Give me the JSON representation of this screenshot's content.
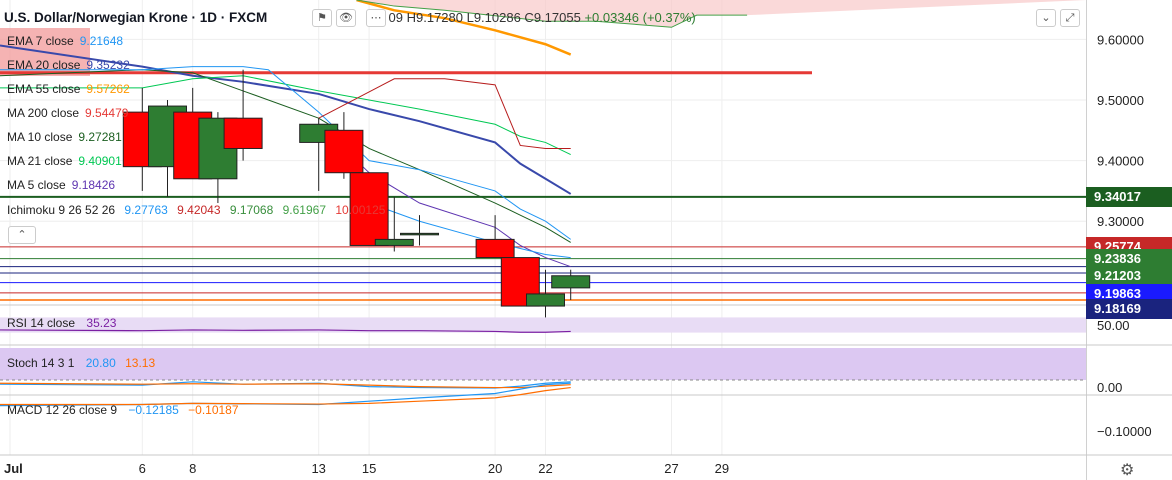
{
  "header": {
    "title": "U.S. Dollar/Norwegian Krone · 1D · FXCM",
    "ohlc_text": "09 H9.17280 L9.10286 C9.17055",
    "change_text": "+0.03346 (+0.37%)"
  },
  "legend": [
    {
      "label": "EMA 7 close",
      "value": "9.21648",
      "color": "#2196f3"
    },
    {
      "label": "EMA 20 close",
      "value": "9.35232",
      "color": "#3949ab"
    },
    {
      "label": "EMA 55 close",
      "value": "9.57262",
      "color": "#ff9800"
    },
    {
      "label": "MA 200 close",
      "value": "9.54479",
      "color": "#e53935"
    },
    {
      "label": "MA 10 close",
      "value": "9.27281",
      "color": "#1b5e20"
    },
    {
      "label": "MA 21 close",
      "value": "9.40901",
      "color": "#00c853"
    },
    {
      "label": "MA 5 close",
      "value": "9.18426",
      "color": "#5e35b1"
    }
  ],
  "ichimoku": {
    "label": "Ichimoku 9 26 52 26",
    "values": [
      "9.27763",
      "9.42043",
      "9.17068",
      "9.61967",
      "10.00125"
    ],
    "colors": [
      "#2196f3",
      "#c62828",
      "#388e3c",
      "#43a047",
      "#e53935"
    ]
  },
  "price_tags": [
    {
      "value": "9.34017",
      "color": "#1b5e20",
      "y": 9.34017
    },
    {
      "value": "9.25774",
      "color": "#c62828",
      "y": 9.25774
    },
    {
      "value": "9.23836",
      "color": "#2e7d32",
      "y": 9.23836
    },
    {
      "value": "9.21203",
      "color": "#2e7d32",
      "y": 9.21203
    },
    {
      "value": "9.19863",
      "color": "#1a1aff",
      "y": 9.19863
    },
    {
      "value": "9.18169",
      "color": "#1a237e",
      "y": 9.18169
    }
  ],
  "rsi": {
    "label": "RSI 14 close",
    "value": "35.23",
    "axis_tick": "50.00"
  },
  "stoch": {
    "label": "Stoch 14 3 1",
    "k": "20.80",
    "d": "13.13",
    "axis_tick": "0.00"
  },
  "macd": {
    "label": "MACD 12 26 close 9",
    "macd": "−0.12185",
    "signal": "−0.10187",
    "axis_tick": "−0.10000"
  },
  "chart_data": {
    "type": "candlestick",
    "title": "U.S. Dollar/Norwegian Krone · 1D · FXCM",
    "x_tick_labels": [
      "Jul",
      "6",
      "8",
      "13",
      "15",
      "20",
      "22",
      "27",
      "29"
    ],
    "y_tick_labels": [
      "9.60000",
      "9.50000",
      "9.40000",
      "9.30000"
    ],
    "ylim": [
      9.17,
      9.665
    ],
    "days": [
      6,
      7,
      8,
      9,
      10,
      13,
      14,
      15,
      16,
      17,
      20,
      21,
      22,
      23
    ],
    "candles": [
      {
        "o": 9.48,
        "h": 9.52,
        "l": 9.35,
        "c": 9.39
      },
      {
        "o": 9.39,
        "h": 9.5,
        "l": 9.34,
        "c": 9.49
      },
      {
        "o": 9.48,
        "h": 9.52,
        "l": 9.37,
        "c": 9.37
      },
      {
        "o": 9.37,
        "h": 9.48,
        "l": 9.33,
        "c": 9.47
      },
      {
        "o": 9.47,
        "h": 9.55,
        "l": 9.4,
        "c": 9.42
      },
      {
        "o": 9.43,
        "h": 9.47,
        "l": 9.35,
        "c": 9.46
      },
      {
        "o": 9.45,
        "h": 9.48,
        "l": 9.37,
        "c": 9.38
      },
      {
        "o": 9.38,
        "h": 9.38,
        "l": 9.26,
        "c": 9.26
      },
      {
        "o": 9.26,
        "h": 9.34,
        "l": 9.25,
        "c": 9.27
      },
      {
        "o": 9.28,
        "h": 9.31,
        "l": 9.26,
        "c": 9.28
      },
      {
        "o": 9.27,
        "h": 9.31,
        "l": 9.24,
        "c": 9.24
      },
      {
        "o": 9.24,
        "h": 9.24,
        "l": 9.16,
        "c": 9.16
      },
      {
        "o": 9.16,
        "h": 9.22,
        "l": 9.14,
        "c": 9.18
      },
      {
        "o": 9.19,
        "h": 9.22,
        "l": 9.17,
        "c": 9.21
      }
    ],
    "horizontal_levels": [
      {
        "y": 9.545,
        "color": "#e53935",
        "width": 3,
        "right": 812
      },
      {
        "y": 9.34017,
        "color": "#1b5e20",
        "width": 2
      },
      {
        "y": 9.25774,
        "color": "#c62828",
        "width": 1
      },
      {
        "y": 9.23836,
        "color": "#2e7d32",
        "width": 1
      },
      {
        "y": 9.225,
        "color": "#1a237e",
        "width": 1
      },
      {
        "y": 9.2145,
        "color": "#1a237e",
        "width": 1
      },
      {
        "y": 9.19863,
        "color": "#1a1aff",
        "width": 1
      },
      {
        "y": 9.18169,
        "color": "#c62828",
        "width": 1
      },
      {
        "y": 9.17,
        "color": "#ff6d00",
        "width": 1.5
      }
    ],
    "ma_lines": [
      {
        "name": "EMA 20 close",
        "color": "#3949ab",
        "width": 2,
        "x": [
          0,
          6,
          8,
          10,
          13,
          15,
          17,
          20,
          21,
          22,
          23
        ],
        "y": [
          9.59,
          9.555,
          9.54,
          9.53,
          9.51,
          9.485,
          9.465,
          9.43,
          9.395,
          9.37,
          9.345
        ]
      },
      {
        "name": "EMA 55 close",
        "color": "#ff9800",
        "width": 2.5,
        "x": [
          14.5,
          16,
          18,
          20,
          22,
          23
        ],
        "y": [
          9.665,
          9.648,
          9.635,
          9.615,
          9.592,
          9.575
        ]
      },
      {
        "name": "MA 10 close",
        "color": "#1b5e20",
        "width": 1,
        "x": [
          0,
          6,
          8,
          10,
          13,
          15,
          17,
          20,
          21,
          22,
          23
        ],
        "y": [
          9.54,
          9.55,
          9.545,
          9.515,
          9.47,
          9.42,
          9.385,
          9.33,
          9.31,
          9.29,
          9.265
        ]
      },
      {
        "name": "MA 21 close",
        "color": "#00c853",
        "width": 1,
        "x": [
          0,
          6,
          8,
          10,
          13,
          15,
          17,
          20,
          21,
          22,
          23
        ],
        "y": [
          9.52,
          9.52,
          9.535,
          9.54,
          9.515,
          9.5,
          9.485,
          9.46,
          9.44,
          9.43,
          9.41
        ]
      },
      {
        "name": "EMA 7 close",
        "color": "#2196f3",
        "width": 1,
        "x": [
          0,
          6,
          8,
          10,
          11,
          13,
          14,
          15,
          17,
          20,
          21,
          22,
          23
        ],
        "y": [
          9.55,
          9.55,
          9.555,
          9.555,
          9.55,
          9.48,
          9.44,
          9.4,
          9.385,
          9.35,
          9.32,
          9.3,
          9.27
        ]
      },
      {
        "name": "MA 5 close",
        "color": "#5e35b1",
        "width": 1,
        "x": [
          13,
          15,
          17,
          20,
          21,
          22,
          23
        ],
        "y": [
          9.46,
          9.38,
          9.33,
          9.29,
          9.26,
          9.24,
          9.225
        ]
      },
      {
        "name": "Ichimoku lagging",
        "color": "#2196f3",
        "width": 1,
        "x": [
          15,
          17,
          20,
          21,
          22,
          23
        ],
        "y": [
          9.33,
          9.3,
          9.265,
          9.255,
          9.245,
          9.24
        ]
      },
      {
        "name": "Ichimoku base",
        "color": "#b71c1c",
        "width": 1,
        "x": [
          13,
          16,
          18,
          20,
          21,
          22,
          23
        ],
        "y": [
          9.47,
          9.535,
          9.535,
          9.525,
          9.425,
          9.42,
          9.42
        ]
      },
      {
        "name": "Cloud span",
        "color": "#43a047",
        "width": 1,
        "x": [
          14.5,
          16,
          18,
          22,
          24,
          27,
          28,
          30
        ],
        "y": [
          9.665,
          9.655,
          9.648,
          9.63,
          9.63,
          9.62,
          9.64,
          9.64
        ]
      }
    ],
    "rsi": {
      "x": [
        0,
        6,
        8,
        10,
        13,
        15,
        17,
        20,
        21,
        22,
        23
      ],
      "y": [
        37,
        35,
        37,
        36,
        37,
        35,
        35,
        33,
        31,
        31,
        33
      ],
      "band": [
        30,
        70
      ]
    },
    "stoch": {
      "k": [
        10,
        8,
        15,
        10,
        12,
        5,
        3,
        2,
        6,
        12,
        15
      ],
      "d": [
        12,
        10,
        11,
        10,
        11,
        8,
        5,
        3,
        3,
        6,
        9
      ]
    },
    "macd": {
      "macd": [
        -0.02,
        -0.025,
        -0.03,
        -0.028,
        -0.025,
        -0.04,
        -0.055,
        -0.075,
        -0.095,
        -0.115,
        -0.122
      ],
      "signal": [
        -0.025,
        -0.025,
        -0.03,
        -0.029,
        -0.027,
        -0.03,
        -0.04,
        -0.055,
        -0.07,
        -0.088,
        -0.102
      ]
    }
  }
}
